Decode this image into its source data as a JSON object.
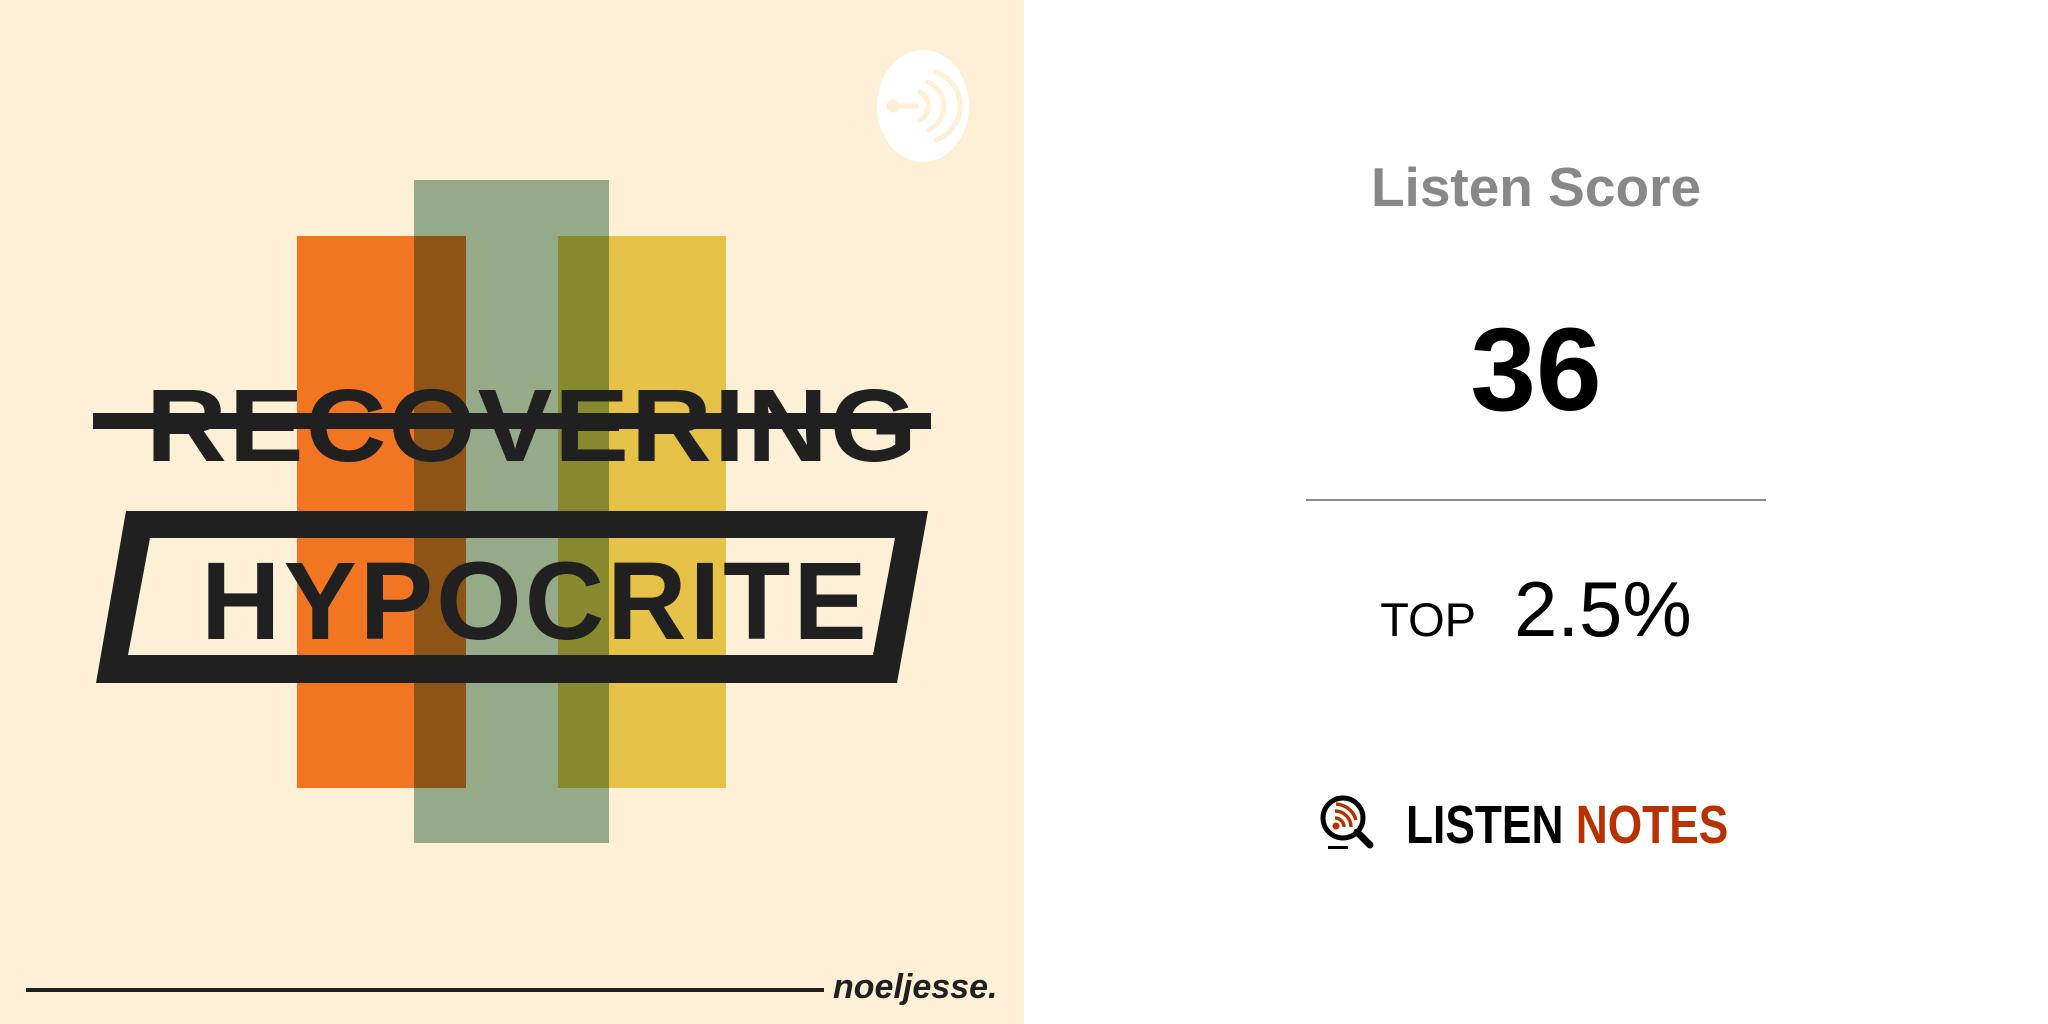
{
  "cover": {
    "title_line1": "RECOVERING",
    "title_line2": "HYPOCRITE",
    "author": "noeljesse.",
    "badge_icon": "anchor-podcast-icon",
    "colors": {
      "background": "#fef0d7",
      "orange": "#f27622",
      "green": "#94b49c",
      "yellow": "#e5c148",
      "ink": "#202020"
    }
  },
  "score": {
    "label": "Listen Score",
    "value": "36",
    "rank_prefix": "TOP",
    "rank_value": "2.5%"
  },
  "brand": {
    "word1": "LISTEN",
    "word2": "NOTES",
    "icon": "magnifier-rss-icon",
    "accent": "#b83200"
  }
}
